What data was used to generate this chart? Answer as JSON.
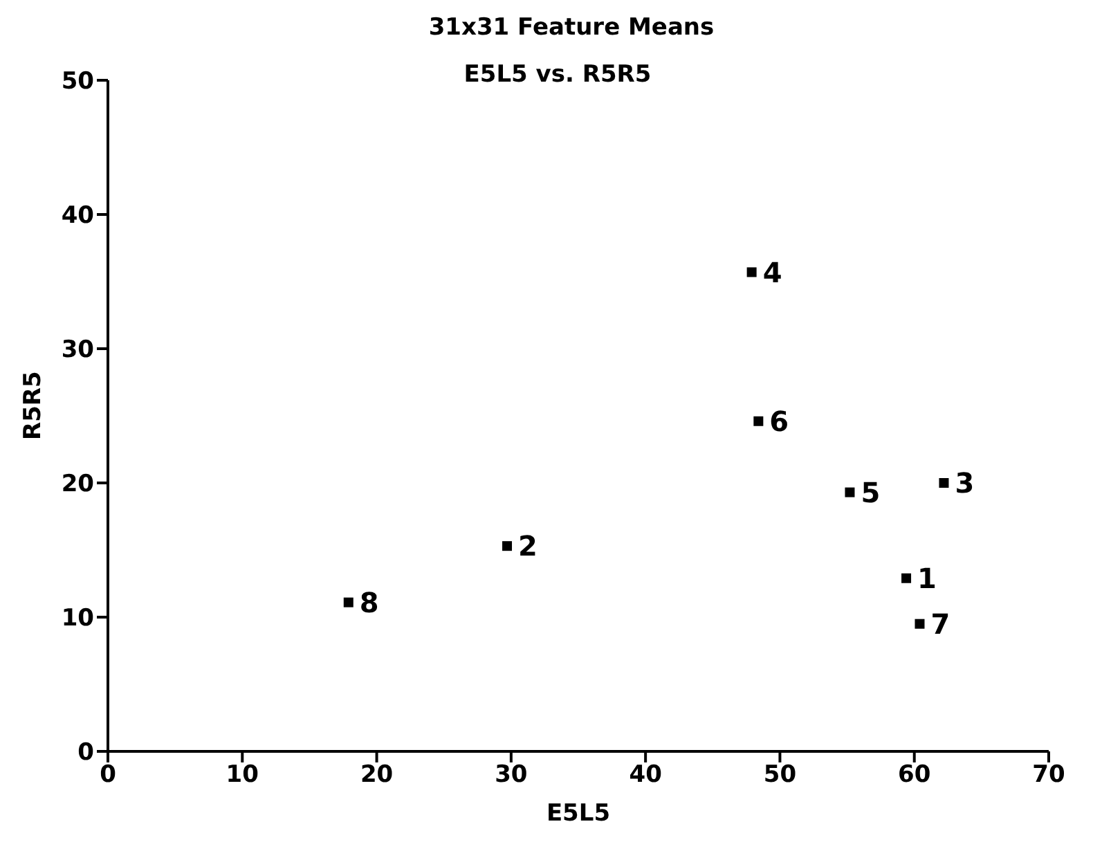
{
  "chart_data": {
    "type": "scatter",
    "title": "31x31 Feature Means",
    "subtitle": "E5L5 vs. R5R5",
    "xlabel": "E5L5",
    "ylabel": "R5R5",
    "x": [
      59.4,
      29.7,
      62.2,
      47.9,
      55.2,
      48.4,
      60.4,
      17.9
    ],
    "values": [
      12.9,
      15.3,
      20.0,
      35.7,
      19.3,
      24.6,
      9.5,
      11.1
    ],
    "annotations": [
      {
        "text": "1",
        "x": 59.4,
        "y": 12.9
      },
      {
        "text": "2",
        "x": 29.7,
        "y": 15.3
      },
      {
        "text": "3",
        "x": 62.2,
        "y": 20.0
      },
      {
        "text": "4",
        "x": 47.9,
        "y": 35.7
      },
      {
        "text": "5",
        "x": 55.2,
        "y": 19.3
      },
      {
        "text": "6",
        "x": 48.4,
        "y": 24.6
      },
      {
        "text": "7",
        "x": 60.4,
        "y": 9.5
      },
      {
        "text": "8",
        "x": 17.9,
        "y": 11.1
      }
    ],
    "color": "#000000",
    "marker": "square",
    "grid": false,
    "legend": false,
    "xlim": [
      0,
      70
    ],
    "xticks": [
      0,
      10,
      20,
      30,
      40,
      50,
      60,
      70
    ],
    "ylim": [
      0,
      50
    ],
    "yticks": [
      0,
      10,
      20,
      30,
      40,
      50
    ]
  }
}
